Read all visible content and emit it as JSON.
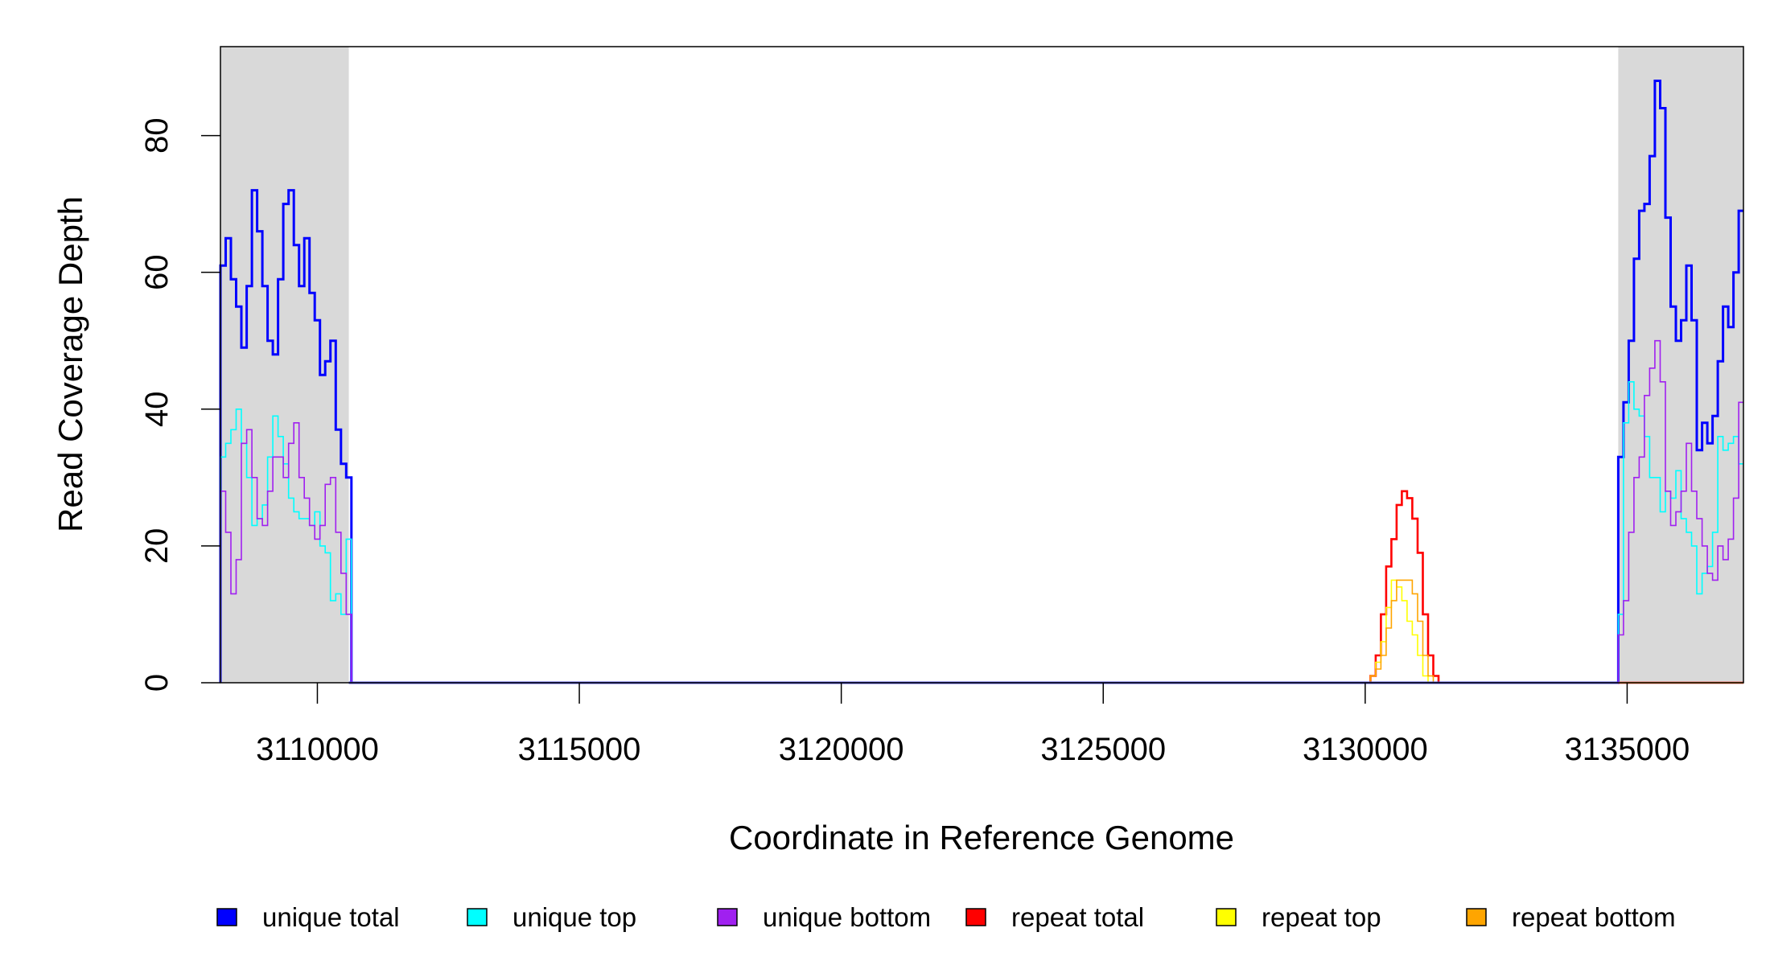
{
  "chart_data": {
    "type": "line",
    "title": "",
    "xlabel": "Coordinate in Reference Genome",
    "ylabel": "Read Coverage Depth",
    "xlim": [
      3108150,
      3137220
    ],
    "ylim": [
      0,
      93
    ],
    "x_ticks": [
      3110000,
      3115000,
      3120000,
      3125000,
      3130000,
      3135000
    ],
    "x_tick_labels": [
      "3110000",
      "3115000",
      "3120000",
      "3125000",
      "3130000",
      "3135000"
    ],
    "y_ticks": [
      0,
      20,
      40,
      60,
      80
    ],
    "y_tick_labels": [
      "0",
      "20",
      "40",
      "60",
      "80"
    ],
    "grid": false,
    "legend_position": "bottom",
    "shaded_regions": [
      [
        3108150,
        3110600
      ],
      [
        3134830,
        3137220
      ]
    ],
    "shade_color": "#d9d9d9",
    "series": [
      {
        "name": "unique total",
        "color": "#0000ff",
        "width": 3,
        "segments": [
          {
            "start": 3108150,
            "step": 100,
            "values": [
              61,
              65,
              59,
              55,
              49,
              58,
              72,
              66,
              58,
              50,
              48,
              59,
              70,
              72,
              64,
              58,
              65,
              57,
              53,
              45,
              47,
              50,
              37,
              32,
              30
            ]
          },
          {
            "start": 3134830,
            "step": 100,
            "values": [
              33,
              41,
              50,
              62,
              69,
              70,
              77,
              88,
              84,
              68,
              55,
              50,
              53,
              61,
              53,
              34,
              38,
              35,
              39,
              47,
              55,
              52,
              60,
              69
            ]
          }
        ]
      },
      {
        "name": "unique top",
        "color": "#00ffff",
        "width": 1.6,
        "segments": [
          {
            "start": 3108150,
            "step": 100,
            "values": [
              33,
              35,
              37,
              40,
              35,
              30,
              23,
              24,
              26,
              33,
              39,
              36,
              32,
              27,
              25,
              24,
              24,
              23,
              25,
              20,
              19,
              12,
              13,
              10,
              21
            ]
          },
          {
            "start": 3134830,
            "step": 100,
            "values": [
              10,
              38,
              44,
              40,
              39,
              36,
              30,
              30,
              25,
              28,
              27,
              31,
              24,
              22,
              20,
              13,
              16,
              17,
              22,
              36,
              34,
              35,
              36,
              32
            ]
          }
        ]
      },
      {
        "name": "unique bottom",
        "color": "#a020f0",
        "width": 1.6,
        "segments": [
          {
            "start": 3108150,
            "step": 100,
            "values": [
              28,
              22,
              13,
              18,
              35,
              37,
              30,
              24,
              23,
              28,
              33,
              33,
              30,
              35,
              38,
              30,
              27,
              23,
              21,
              23,
              29,
              30,
              22,
              16,
              10
            ]
          },
          {
            "start": 3134830,
            "step": 100,
            "values": [
              7,
              12,
              22,
              30,
              33,
              42,
              46,
              50,
              44,
              28,
              23,
              25,
              28,
              35,
              28,
              24,
              20,
              16,
              15,
              20,
              18,
              21,
              27,
              41
            ]
          }
        ]
      },
      {
        "name": "repeat total",
        "color": "#ff0000",
        "width": 2.6,
        "segments": [
          {
            "start": 3130100,
            "step": 100,
            "values": [
              1,
              4,
              10,
              17,
              21,
              26,
              28,
              27,
              24,
              19,
              10,
              4,
              1
            ]
          }
        ]
      },
      {
        "name": "repeat top",
        "color": "#ffff00",
        "width": 1.6,
        "segments": [
          {
            "start": 3130100,
            "step": 100,
            "values": [
              1,
              3,
              6,
              11,
              15,
              14,
              12,
              9,
              7,
              4,
              1,
              0,
              0
            ]
          }
        ]
      },
      {
        "name": "repeat bottom",
        "color": "#ffa500",
        "width": 1.6,
        "segments": [
          {
            "start": 3130100,
            "step": 100,
            "values": [
              1,
              2,
              4,
              8,
              12,
              15,
              15,
              15,
              13,
              9,
              4,
              1,
              0
            ]
          }
        ]
      }
    ]
  }
}
